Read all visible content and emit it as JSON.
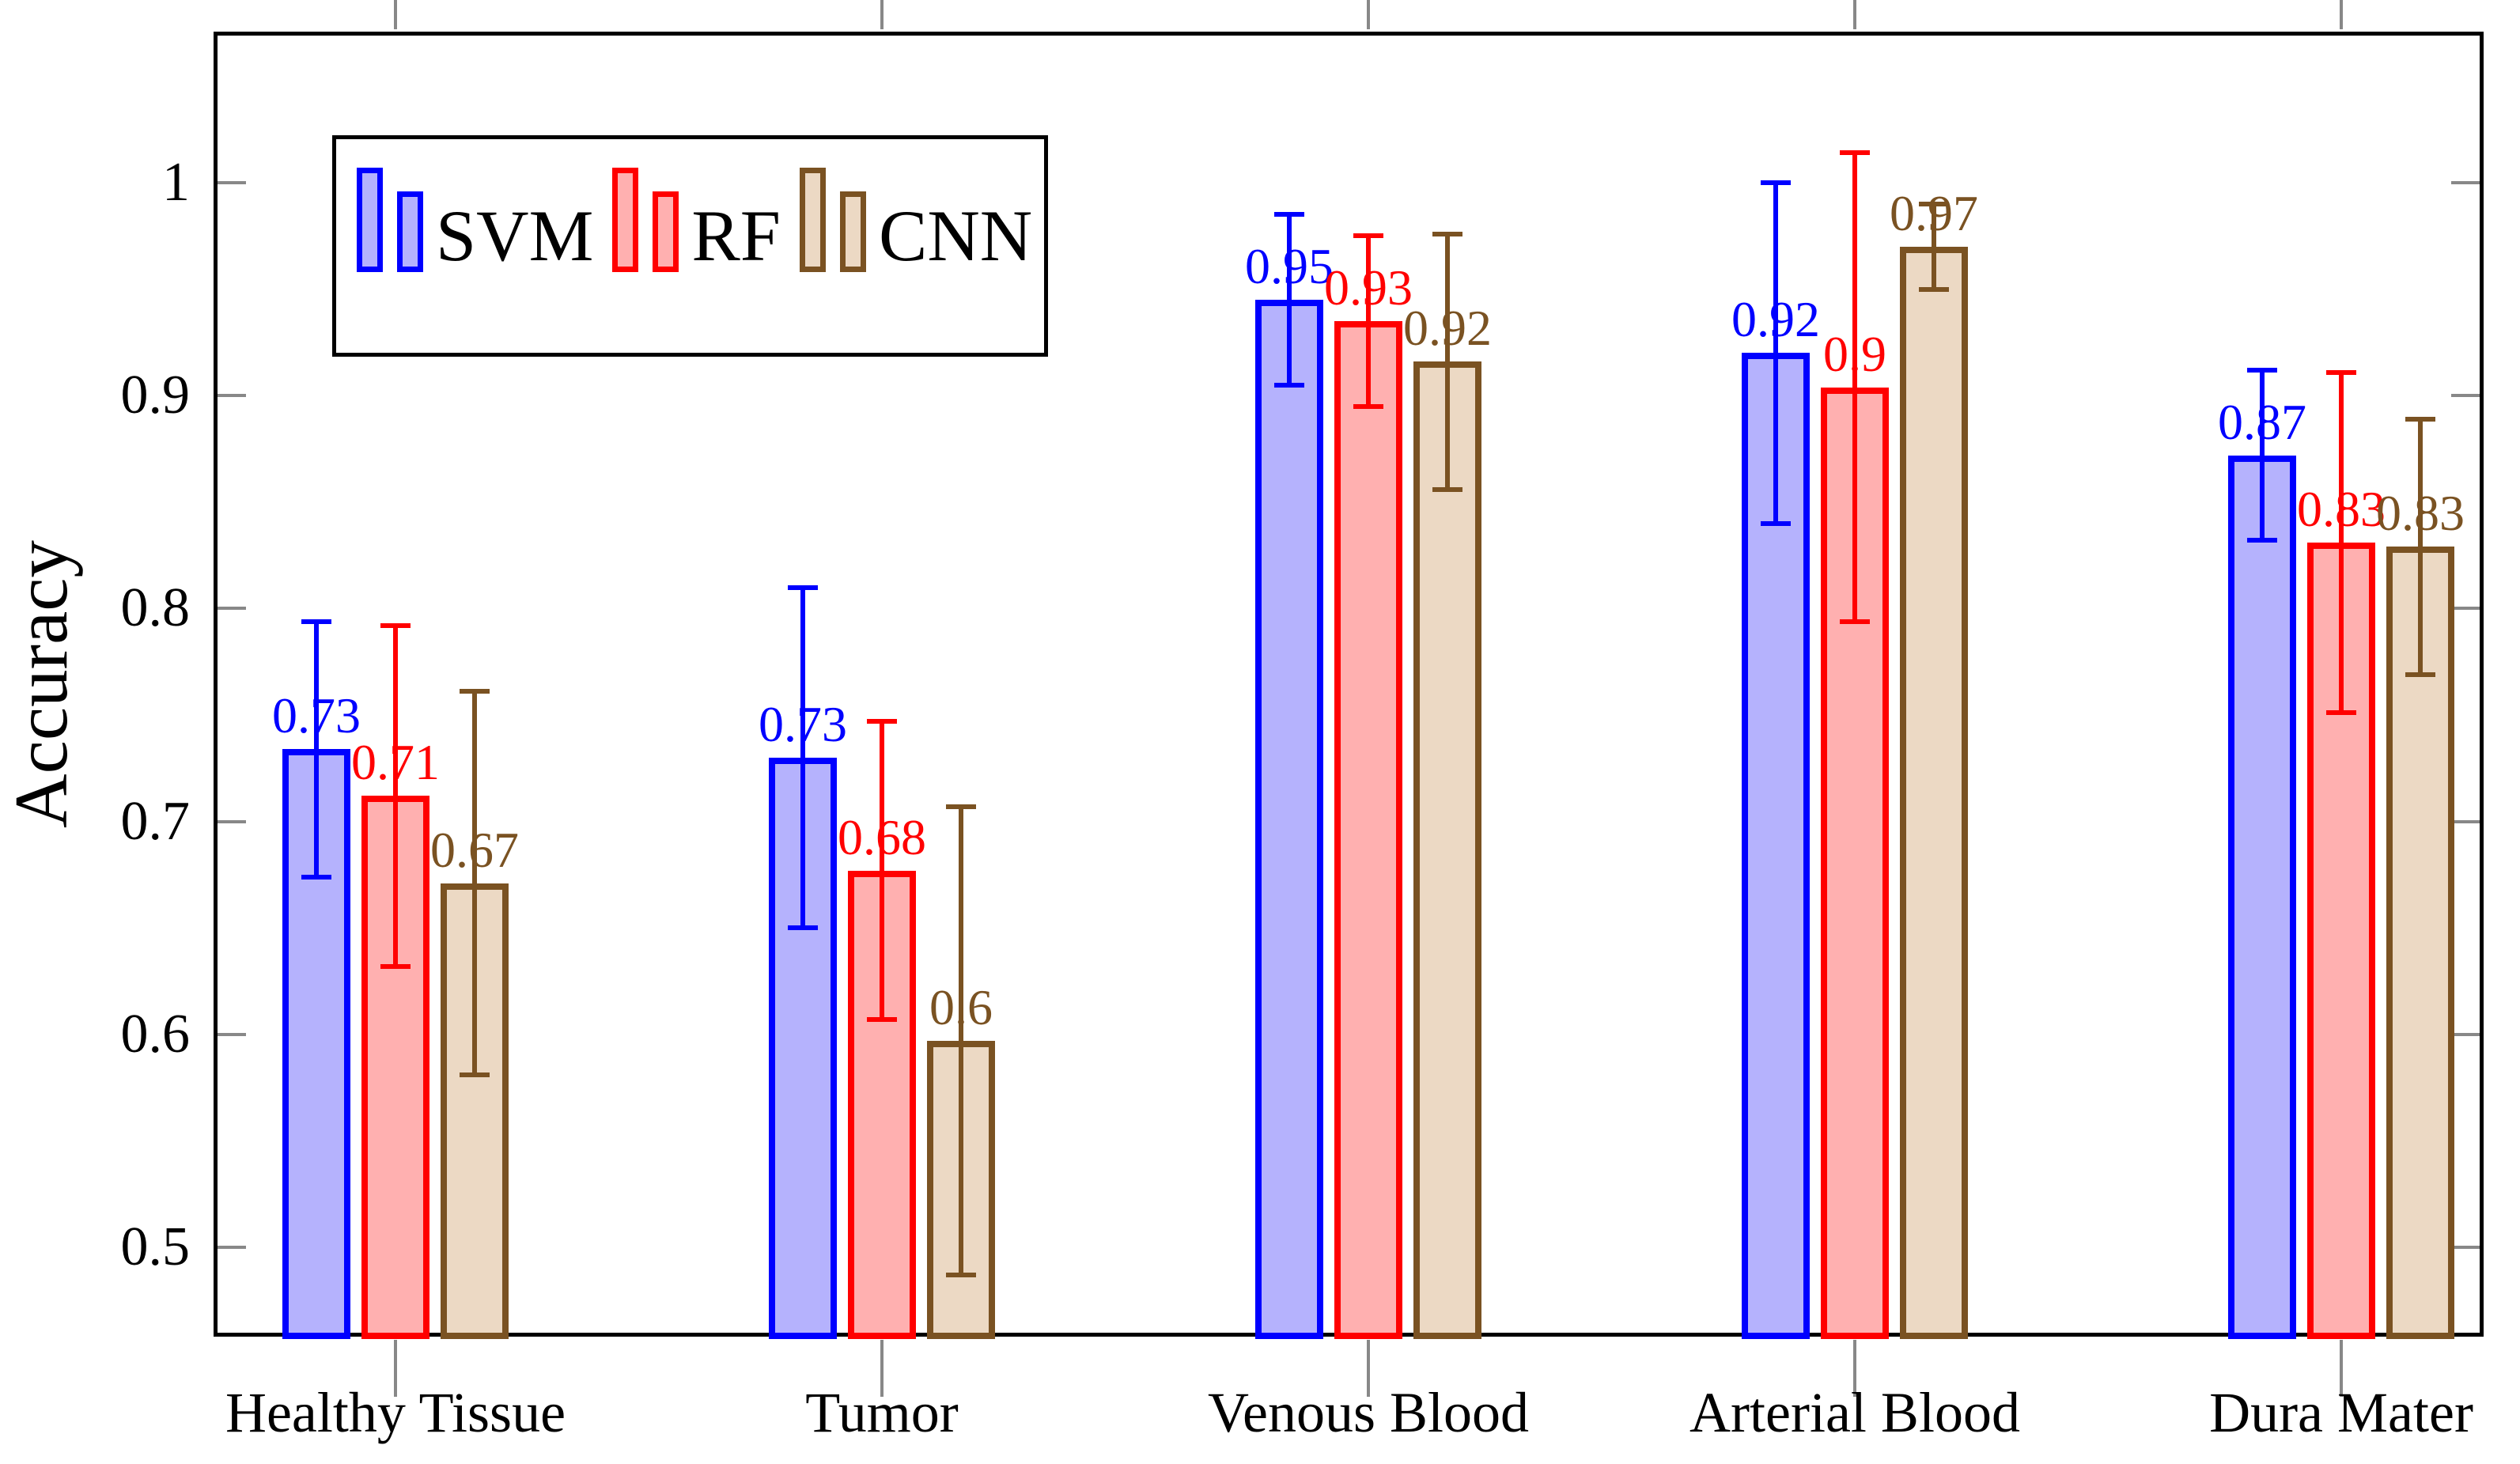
{
  "chart_data": {
    "type": "bar",
    "title": "",
    "xlabel": "",
    "ylabel": "Accuracy",
    "ylim": [
      0.458,
      1.071
    ],
    "grid": false,
    "axis_color": "#000000",
    "tick_color": "#888888",
    "legend_position": "top-left-inside",
    "categories": [
      "Healthy Tissue",
      "Tumor",
      "Venous Blood",
      "Arterial Blood",
      "Dura Mater"
    ],
    "yticks": [
      {
        "value": 1.0,
        "label": "1"
      },
      {
        "value": 0.9,
        "label": "0.9"
      },
      {
        "value": 0.8,
        "label": "0.8"
      },
      {
        "value": 0.7,
        "label": "0.7"
      },
      {
        "value": 0.6,
        "label": "0.6"
      },
      {
        "value": 0.5,
        "label": "0.5"
      }
    ],
    "series": [
      {
        "name": "SVM",
        "color": "#0000ff",
        "fill": "#b5b2fd",
        "values": [
          0.734,
          0.73,
          0.945,
          0.92,
          0.872
        ],
        "errors": [
          0.06,
          0.08,
          0.04,
          0.08,
          0.04
        ],
        "value_labels": [
          "0.73",
          "0.73",
          "0.95",
          "0.92",
          "0.87"
        ]
      },
      {
        "name": "RF",
        "color": "#ff0000",
        "fill": "#ffb0b0",
        "values": [
          0.712,
          0.677,
          0.935,
          0.904,
          0.831
        ],
        "errors": [
          0.08,
          0.07,
          0.04,
          0.11,
          0.08
        ],
        "value_labels": [
          "0.71",
          "0.68",
          "0.93",
          "0.9",
          "0.83"
        ]
      },
      {
        "name": "CNN",
        "color": "#7a5222",
        "fill": "#ecd9c4",
        "values": [
          0.671,
          0.597,
          0.916,
          0.97,
          0.829
        ],
        "errors": [
          0.09,
          0.11,
          0.06,
          0.02,
          0.06
        ],
        "value_labels": [
          "0.67",
          "0.6",
          "0.92",
          "0.97",
          "0.83"
        ]
      }
    ]
  }
}
